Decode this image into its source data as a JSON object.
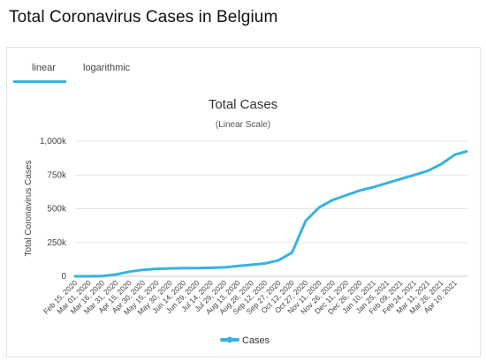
{
  "page": {
    "title": "Total Coronavirus Cases in Belgium"
  },
  "tabs": [
    {
      "label": "linear",
      "active": true
    },
    {
      "label": "logarithmic",
      "active": false
    }
  ],
  "colors": {
    "series": "#36b3e2",
    "grid": "#e6e6e6",
    "tab_accent": "#36b3e2"
  },
  "chart_data": {
    "type": "line",
    "title": "Total Cases",
    "subtitle": "(Linear Scale)",
    "ylabel": "Total Coronavirus Cases",
    "xlabel": "",
    "ylim": [
      0,
      1000000
    ],
    "yticks": [
      0,
      250000,
      500000,
      750000,
      1000000
    ],
    "ytick_labels": [
      "0",
      "250k",
      "500k",
      "750k",
      "1,000k"
    ],
    "grid": true,
    "legend": "bottom",
    "categories": [
      "Feb 15, 2020",
      "Mar 01, 2020",
      "Mar 16, 2020",
      "Mar 31, 2020",
      "Apr 15, 2020",
      "Apr 30, 2020",
      "May 15, 2020",
      "May 30, 2020",
      "Jun 14, 2020",
      "Jun 29, 2020",
      "Jul 14, 2020",
      "Jul 29, 2020",
      "Aug 13, 2020",
      "Aug 28, 2020",
      "Sep 12, 2020",
      "Sep 27, 2020",
      "Oct 12, 2020",
      "Oct 27, 2020",
      "Nov 11, 2020",
      "Nov 26, 2020",
      "Dec 11, 2020",
      "Dec 26, 2020",
      "Jan 10, 2021",
      "Jan 25, 2021",
      "Feb 09, 2021",
      "Feb 24, 2021",
      "Mar 11, 2021",
      "Mar 26, 2021",
      "Apr 10, 2021"
    ],
    "series": [
      {
        "name": "Cases",
        "values": [
          0,
          0,
          1000,
          13000,
          34000,
          48000,
          55000,
          58000,
          60000,
          61000,
          63000,
          66000,
          76000,
          85000,
          95000,
          118000,
          175000,
          410000,
          510000,
          565000,
          600000,
          635000,
          660000,
          690000,
          720000,
          750000,
          780000,
          830000,
          900000
        ]
      }
    ],
    "last_point": {
      "x": "Apr 14, 2021",
      "y": 925000
    }
  }
}
